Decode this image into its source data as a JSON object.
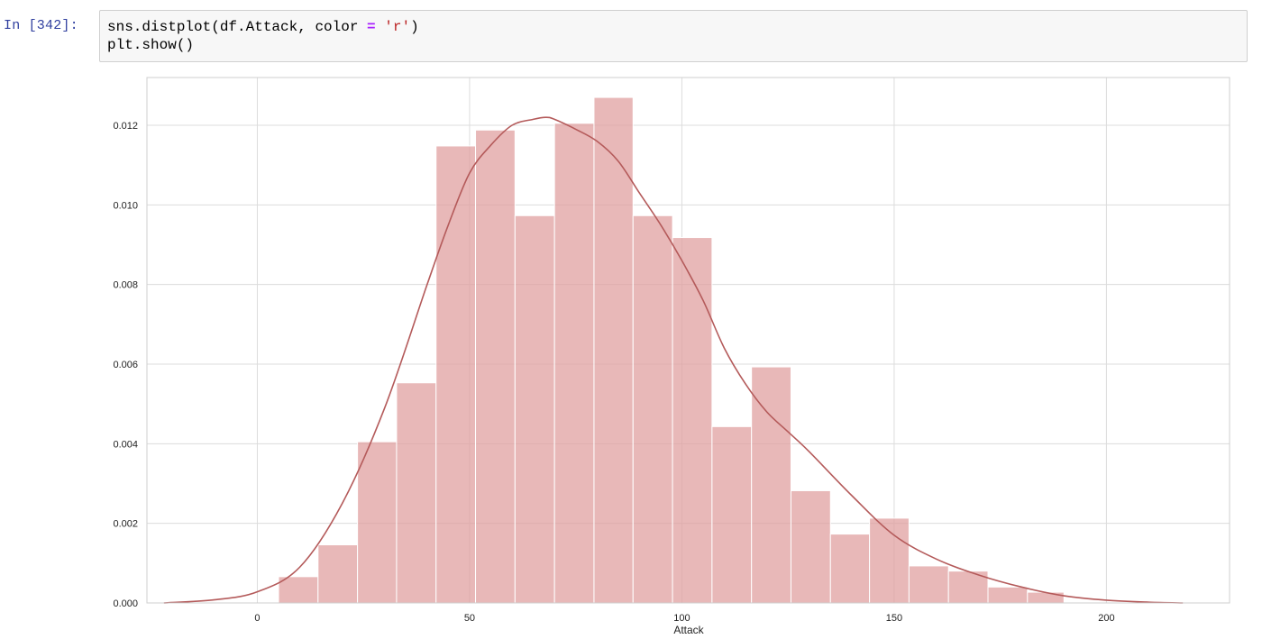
{
  "cell": {
    "prompt": "In [342]:",
    "code_line1": {
      "pre": "sns.distplot(df.Attack, color ",
      "op": "=",
      "mid": " ",
      "str": "'r'",
      "post": ")"
    },
    "code_line2": "plt.show()"
  },
  "chart_data": {
    "type": "histogram",
    "title": "",
    "xlabel": "Attack",
    "ylabel": "",
    "xlim": [
      -26,
      229
    ],
    "ylim": [
      0,
      0.0132
    ],
    "x_ticks": [
      0,
      50,
      100,
      150,
      200
    ],
    "x_tick_labels": [
      "0",
      "50",
      "100",
      "150",
      "200"
    ],
    "y_ticks": [
      0.0,
      0.002,
      0.004,
      0.006,
      0.008,
      0.01,
      0.012
    ],
    "y_tick_labels": [
      "0.000",
      "0.002",
      "0.004",
      "0.006",
      "0.008",
      "0.010",
      "0.012"
    ],
    "grid": true,
    "bar_color": "#e0a0a0",
    "line_color": "#b45a5a",
    "bins": [
      {
        "x0": 5.0,
        "x1": 14.3,
        "density": 0.00066
      },
      {
        "x0": 14.3,
        "x1": 23.6,
        "density": 0.00146
      },
      {
        "x0": 23.6,
        "x1": 32.8,
        "density": 0.00405
      },
      {
        "x0": 32.8,
        "x1": 42.1,
        "density": 0.00553
      },
      {
        "x0": 42.1,
        "x1": 51.4,
        "density": 0.01148
      },
      {
        "x0": 51.4,
        "x1": 60.7,
        "density": 0.01188
      },
      {
        "x0": 60.7,
        "x1": 70.0,
        "density": 0.00973
      },
      {
        "x0": 70.0,
        "x1": 79.3,
        "density": 0.01205
      },
      {
        "x0": 79.3,
        "x1": 88.5,
        "density": 0.0127
      },
      {
        "x0": 88.5,
        "x1": 97.8,
        "density": 0.00973
      },
      {
        "x0": 97.8,
        "x1": 107.1,
        "density": 0.00918
      },
      {
        "x0": 107.1,
        "x1": 116.4,
        "density": 0.00443
      },
      {
        "x0": 116.4,
        "x1": 125.7,
        "density": 0.00593
      },
      {
        "x0": 125.7,
        "x1": 135.0,
        "density": 0.00282
      },
      {
        "x0": 135.0,
        "x1": 144.2,
        "density": 0.00173
      },
      {
        "x0": 144.2,
        "x1": 153.5,
        "density": 0.00213
      },
      {
        "x0": 153.5,
        "x1": 162.8,
        "density": 0.00093
      },
      {
        "x0": 162.8,
        "x1": 172.1,
        "density": 0.0008
      },
      {
        "x0": 172.1,
        "x1": 181.4,
        "density": 0.0004
      },
      {
        "x0": 181.4,
        "x1": 190.0,
        "density": 0.00027
      }
    ],
    "kde": {
      "x": [
        -22,
        -10,
        0,
        10,
        20,
        30,
        40,
        45,
        50,
        55,
        60,
        65,
        68,
        70,
        75,
        80,
        85,
        90,
        95,
        100,
        105,
        110,
        115,
        120,
        125,
        130,
        140,
        150,
        160,
        170,
        180,
        190,
        200,
        210,
        218
      ],
      "y": [
        0.0,
        8e-05,
        0.00028,
        0.0009,
        0.0025,
        0.0049,
        0.008,
        0.0095,
        0.0108,
        0.0115,
        0.012,
        0.01215,
        0.0122,
        0.01215,
        0.0119,
        0.0116,
        0.0111,
        0.0103,
        0.0095,
        0.0086,
        0.0076,
        0.0064,
        0.0055,
        0.0048,
        0.0043,
        0.0038,
        0.0027,
        0.0017,
        0.0011,
        0.0007,
        0.0004,
        0.00018,
        7e-05,
        2e-05,
        0.0
      ]
    }
  }
}
